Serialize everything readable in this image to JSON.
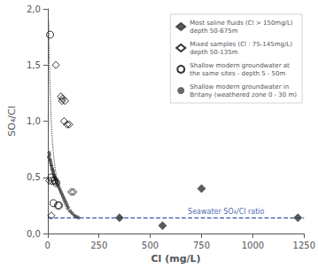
{
  "chart_data": {
    "type": "scatter",
    "xlabel": "Cl (mg/L)",
    "ylabel": "SO₄/Cl",
    "xlim": [
      0,
      1250
    ],
    "ylim": [
      0,
      2.0
    ],
    "xticks": [
      0,
      250,
      500,
      750,
      1000,
      1250
    ],
    "yticks": [
      {
        "value": 0.0,
        "label": "0,0"
      },
      {
        "value": 0.5,
        "label": "0,5"
      },
      {
        "value": 1.0,
        "label": "1,0"
      },
      {
        "value": 1.5,
        "label": "1,5"
      },
      {
        "value": 2.0,
        "label": "2,0"
      }
    ],
    "grid": false,
    "legend": "upper right",
    "series": [
      {
        "name": "Most saline fluids (Cl > 150mg/L)\ndepth 50-675m",
        "type": "scatter",
        "marker": "diamond",
        "color": "#333333",
        "x": [
          350,
          560,
          750,
          1220
        ],
        "values": [
          0.14,
          0.07,
          0.4,
          0.14
        ]
      },
      {
        "name": "Mixed samples (Cl : 75-145mg/L)\ndepth 50-135m",
        "type": "scatter",
        "marker": "open_diamond",
        "color": "#000000",
        "x": [
          40,
          65,
          70,
          72,
          80,
          85,
          95,
          105,
          115,
          125,
          8,
          18
        ],
        "values": [
          1.5,
          1.22,
          1.18,
          1.2,
          1.0,
          1.18,
          0.97,
          0.97,
          0.37,
          0.37,
          0.47,
          0.16
        ]
      },
      {
        "name": "Shallow modern groundwater at\nthe same sites - depth 5 - 50m",
        "type": "scatter",
        "marker": "open_circle",
        "color": "#000000",
        "x": [
          12,
          18,
          22,
          28,
          35,
          42,
          50,
          55
        ],
        "values": [
          1.77,
          0.5,
          0.47,
          0.27,
          0.47,
          0.45,
          0.25,
          0.25
        ]
      },
      {
        "name": "Shallow modern groundwater in\nBritany (weathered zone 0 - 30 m)",
        "type": "scatter",
        "marker": "circle",
        "color": "#444444",
        "x": [
          5,
          7,
          9,
          11,
          13,
          15,
          17,
          19,
          21,
          23,
          25,
          27,
          29,
          31,
          33,
          35,
          37,
          39,
          41,
          43,
          45,
          47,
          50,
          55,
          60,
          65,
          70,
          75,
          80,
          85,
          90,
          95,
          100,
          110,
          120,
          130,
          140,
          150
        ],
        "values": [
          0.68,
          0.72,
          0.7,
          0.66,
          0.65,
          0.63,
          0.61,
          0.6,
          0.58,
          0.57,
          0.56,
          0.55,
          0.53,
          0.52,
          0.51,
          0.5,
          0.49,
          0.48,
          0.47,
          0.46,
          0.45,
          0.44,
          0.43,
          0.41,
          0.39,
          0.37,
          0.35,
          0.33,
          0.31,
          0.29,
          0.27,
          0.25,
          0.23,
          0.2,
          0.18,
          0.16,
          0.15,
          0.14
        ]
      },
      {
        "type": "line",
        "line_style": "dotted",
        "color": "#555555",
        "x": [
          5,
          7,
          9,
          11,
          13,
          15,
          18,
          21,
          25,
          30,
          35,
          40,
          45,
          50,
          60,
          70,
          80,
          90,
          100,
          120,
          140
        ],
        "values": [
          1.9,
          1.65,
          1.45,
          1.32,
          1.22,
          1.12,
          0.98,
          0.88,
          0.78,
          0.68,
          0.6,
          0.54,
          0.49,
          0.45,
          0.38,
          0.32,
          0.27,
          0.23,
          0.2,
          0.17,
          0.15
        ]
      },
      {
        "type": "hline",
        "line_style": "dashed",
        "color": "#1a3a9a",
        "values": [
          0.14
        ]
      }
    ],
    "annotations": [
      {
        "text": "Seawater SO₄/Cl ratio",
        "x": 870,
        "y": 0.14,
        "color": "#1a3a9a"
      }
    ]
  }
}
